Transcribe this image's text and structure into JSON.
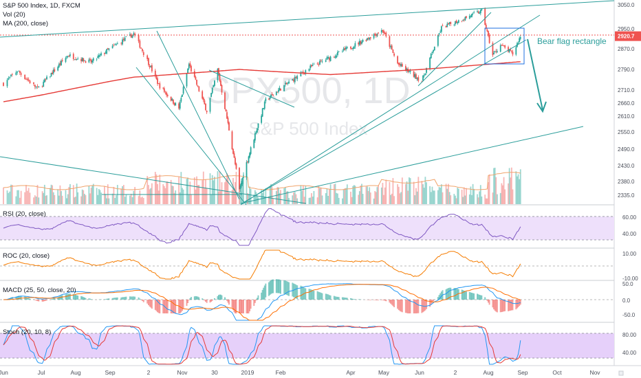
{
  "header": {
    "symbol_line": "S&P 500 Index, 1D, FXCM",
    "vol_label": "Vol (20)",
    "ma_label": "MA (200, close)"
  },
  "watermark": {
    "symbol": "SPX500, 1D",
    "name": "S&P 500 Index"
  },
  "annotation": "Bear flag rectangle",
  "colors": {
    "up": "#26a69a",
    "down": "#ef5350",
    "ma": "#e53935",
    "trend": "#2a9d9a",
    "indicator_line": "#7e57c2",
    "band_fill": "#eee0fb",
    "roc_line": "#f57c00",
    "macd_line": "#2196f3",
    "signal_line": "#ff6d00",
    "price_tag": "#ef5350"
  },
  "chart_data": {
    "type": "candlestick",
    "instrument": "S&P 500 Index",
    "timeframe": "1D",
    "source": "FXCM",
    "last_price": "2920.7",
    "price_ticks": [
      "3050.0",
      "2950.0",
      "2920.7",
      "2870.0",
      "2790.0",
      "2710.0",
      "2660.0",
      "2610.0",
      "2550.0",
      "2490.0",
      "2430.0",
      "2380.0",
      "2335.0"
    ],
    "x_tick_labels": [
      "Jun",
      "Jul",
      "Aug",
      "Sep",
      "2",
      "Nov",
      "30",
      "2019",
      "Feb",
      "Apr",
      "May",
      "Jun",
      "2",
      "Aug",
      "Sep",
      "Oct",
      "Nov"
    ],
    "price_anchors": [
      {
        "date": "2018-06-01",
        "close": 2735
      },
      {
        "date": "2018-06-12",
        "close": 2785
      },
      {
        "date": "2018-06-28",
        "close": 2715
      },
      {
        "date": "2018-07-25",
        "close": 2845
      },
      {
        "date": "2018-08-15",
        "close": 2818
      },
      {
        "date": "2018-09-20",
        "close": 2930
      },
      {
        "date": "2018-10-11",
        "close": 2730
      },
      {
        "date": "2018-10-29",
        "close": 2640
      },
      {
        "date": "2018-11-07",
        "close": 2810
      },
      {
        "date": "2018-11-23",
        "close": 2630
      },
      {
        "date": "2018-12-03",
        "close": 2790
      },
      {
        "date": "2018-12-24",
        "close": 2350
      },
      {
        "date": "2019-01-18",
        "close": 2670
      },
      {
        "date": "2019-02-25",
        "close": 2795
      },
      {
        "date": "2019-04-30",
        "close": 2945
      },
      {
        "date": "2019-05-13",
        "close": 2812
      },
      {
        "date": "2019-06-03",
        "close": 2745
      },
      {
        "date": "2019-06-20",
        "close": 2955
      },
      {
        "date": "2019-07-26",
        "close": 3025
      },
      {
        "date": "2019-08-05",
        "close": 2845
      },
      {
        "date": "2019-08-12",
        "close": 2885
      },
      {
        "date": "2019-08-23",
        "close": 2850
      },
      {
        "date": "2019-08-30",
        "close": 2920
      }
    ],
    "ma200_anchors": [
      {
        "date": "2018-06-01",
        "value": 2665
      },
      {
        "date": "2018-09-20",
        "value": 2760
      },
      {
        "date": "2018-12-24",
        "value": 2790
      },
      {
        "date": "2019-03-15",
        "value": 2770
      },
      {
        "date": "2019-06-03",
        "value": 2790
      },
      {
        "date": "2019-08-30",
        "value": 2820
      }
    ],
    "indicators": [
      {
        "name": "RSI (20, close)",
        "ticks": [
          "60.00",
          "40.00"
        ],
        "ylim": [
          25,
          75
        ]
      },
      {
        "name": "ROC (20, close)",
        "ticks": [
          "10.00",
          "-10.00"
        ],
        "ylim": [
          -14,
          14
        ]
      },
      {
        "name": "MACD (25, 50, close, 20)",
        "ticks": [
          "50.0",
          "0.0",
          "-50.0"
        ],
        "ylim": [
          -60,
          55
        ]
      },
      {
        "name": "Stoch (20, 10, 8)",
        "ticks": [
          "80.00",
          "40.00"
        ],
        "ylim": [
          0,
          100
        ]
      }
    ]
  }
}
